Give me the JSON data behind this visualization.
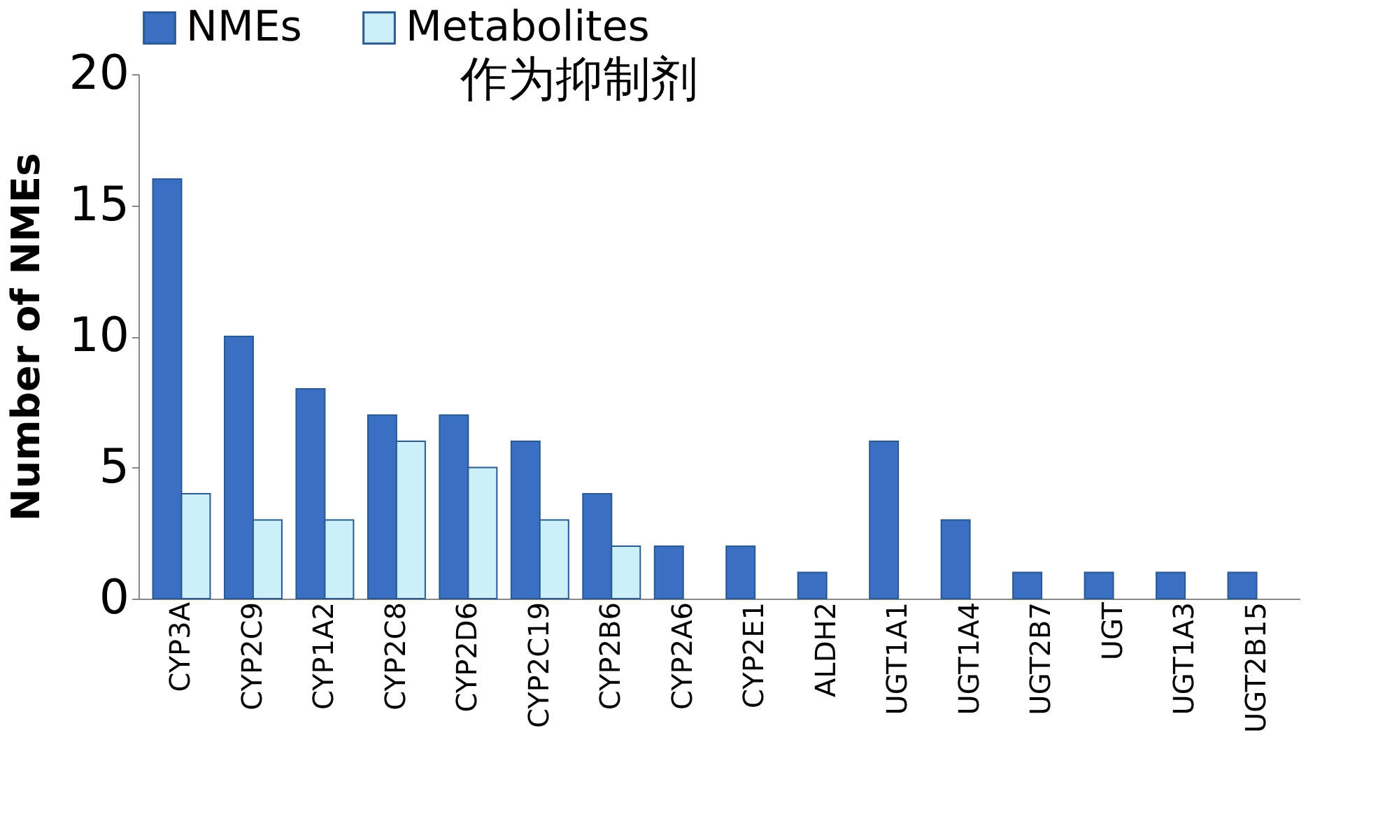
{
  "chart_data": {
    "type": "bar",
    "title": "作为抑制剂",
    "ylabel": "Number of NMEs",
    "categories": [
      "CYP3A",
      "CYP2C9",
      "CYP1A2",
      "CYP2C8",
      "CYP2D6",
      "CYP2C19",
      "CYP2B6",
      "CYP2A6",
      "CYP2E1",
      "ALDH2",
      "UGT1A1",
      "UGT1A4",
      "UGT2B7",
      "UGT",
      "UGT1A3",
      "UGT2B15"
    ],
    "series": [
      {
        "name": "NMEs",
        "color": "#3a6fc4",
        "values": [
          16,
          10,
          8,
          7,
          7,
          6,
          4,
          2,
          2,
          1,
          6,
          3,
          1,
          1,
          1,
          1
        ]
      },
      {
        "name": "Metabolites",
        "color": "#ccf0fa",
        "values": [
          4,
          3,
          3,
          6,
          5,
          3,
          2,
          null,
          null,
          null,
          null,
          null,
          null,
          null,
          null,
          null
        ]
      }
    ],
    "ylim": [
      0,
      20
    ],
    "yticks": [
      0,
      5,
      10,
      15,
      20
    ],
    "grid": false,
    "legend": "top"
  }
}
